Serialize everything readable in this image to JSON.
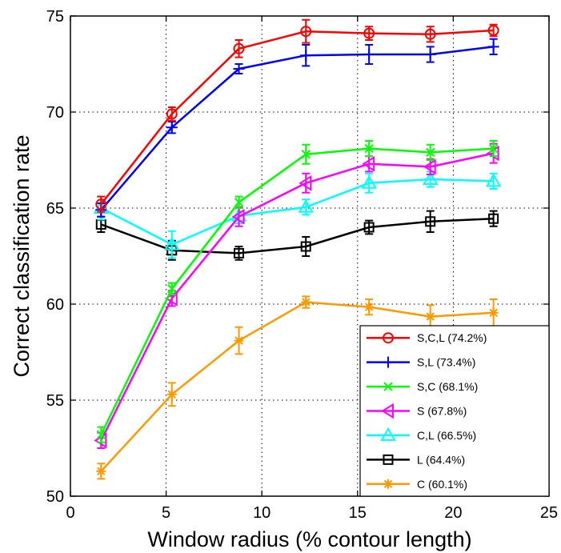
{
  "chart_data": {
    "type": "line",
    "xlabel": "Window radius (% contour length)",
    "ylabel": "Correct classification rate",
    "xlim": [
      0,
      25
    ],
    "ylim": [
      50,
      75
    ],
    "xticks": [
      0,
      5,
      10,
      15,
      20,
      25
    ],
    "yticks": [
      50,
      55,
      60,
      65,
      70,
      75
    ],
    "xtick_labels": [
      "0",
      "5",
      "10",
      "15",
      "20",
      "25"
    ],
    "ytick_labels": [
      "50",
      "55",
      "60",
      "65",
      "70",
      "75"
    ],
    "grid": "dotted",
    "legend_position": "bottom-right",
    "x": [
      1.6,
      5.3,
      8.8,
      12.3,
      15.6,
      18.8,
      22.1
    ],
    "series": [
      {
        "name": "S,C,L (74.2%)",
        "color": "#ff0000",
        "marker": "circle",
        "values": [
          65.2,
          69.9,
          73.3,
          74.2,
          74.1,
          74.05,
          74.25
        ],
        "errors": [
          0.4,
          0.35,
          0.45,
          0.6,
          0.35,
          0.4,
          0.3
        ]
      },
      {
        "name": "S,L (73.4%)",
        "color": "#0000ff",
        "marker": "plus",
        "values": [
          64.9,
          69.2,
          72.25,
          72.95,
          73.0,
          73.0,
          73.4
        ],
        "errors": [
          0.35,
          0.3,
          0.25,
          0.55,
          0.5,
          0.4,
          0.4
        ]
      },
      {
        "name": "S,C (68.1%)",
        "color": "#00ff00",
        "marker": "x",
        "values": [
          53.2,
          60.8,
          65.3,
          67.8,
          68.1,
          67.9,
          68.1
        ],
        "errors": [
          0.4,
          0.3,
          0.3,
          0.5,
          0.4,
          0.4,
          0.4
        ]
      },
      {
        "name": "S (67.8%)",
        "color": "#ff00ff",
        "marker": "triangle-left",
        "values": [
          52.9,
          60.3,
          64.55,
          66.3,
          67.3,
          67.15,
          67.85
        ],
        "errors": [
          0.4,
          0.4,
          0.5,
          0.5,
          0.4,
          0.4,
          0.5
        ]
      },
      {
        "name": "C,L (66.5%)",
        "color": "#00ffff",
        "marker": "triangle-up",
        "values": [
          65.0,
          63.1,
          64.6,
          65.05,
          66.3,
          66.5,
          66.4
        ],
        "errors": [
          0.6,
          0.7,
          0.4,
          0.4,
          0.5,
          0.4,
          0.4
        ]
      },
      {
        "name": "L (64.4%)",
        "color": "#000000",
        "marker": "square",
        "values": [
          64.15,
          62.8,
          62.65,
          63.0,
          64.0,
          64.3,
          64.45
        ],
        "errors": [
          0.4,
          0.5,
          0.35,
          0.5,
          0.35,
          0.55,
          0.4
        ]
      },
      {
        "name": "C (60.1%)",
        "color": "#ff9900",
        "marker": "asterisk",
        "values": [
          51.3,
          55.3,
          58.1,
          60.1,
          59.85,
          59.35,
          59.55
        ],
        "errors": [
          0.4,
          0.6,
          0.7,
          0.3,
          0.4,
          0.6,
          0.7
        ]
      }
    ]
  }
}
